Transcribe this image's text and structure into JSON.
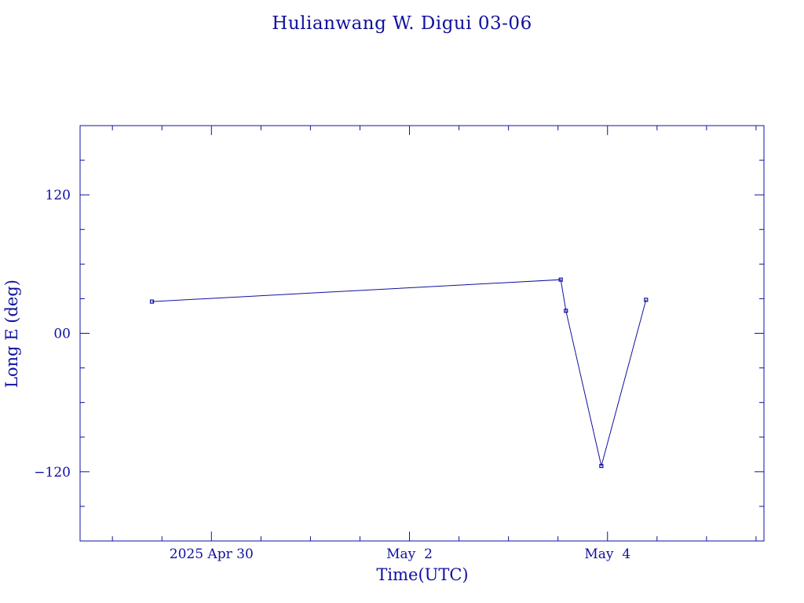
{
  "chart_data": {
    "type": "line",
    "title": "Hulianwang W. Digui 03-06",
    "xlabel": "Time(UTC)",
    "ylabel": "Long E (deg)",
    "x_ticks": [
      {
        "x": "2025-04-30T00:00",
        "label": "2025 Apr 30"
      },
      {
        "x": "2025-05-02T00:00",
        "label": "May  2"
      },
      {
        "x": "2025-05-04T00:00",
        "label": "May  4"
      }
    ],
    "y_ticks": [
      {
        "y": 120,
        "label": "120"
      },
      {
        "y": 0,
        "label": "00"
      },
      {
        "y": -120,
        "label": "−120"
      }
    ],
    "xlim": [
      "2025-04-28T16:10",
      "2025-05-05T13:55"
    ],
    "ylim": [
      -180,
      180
    ],
    "grid": false,
    "color": "#1010a0",
    "series": [
      {
        "name": "",
        "points": [
          {
            "x": "2025-04-29T09:35",
            "y": 27.5
          },
          {
            "x": "2025-05-03T12:40",
            "y": 46.5
          },
          {
            "x": "2025-05-03T13:55",
            "y": 19.5
          },
          {
            "x": "2025-05-03T22:30",
            "y": -115
          },
          {
            "x": "2025-05-04T09:20",
            "y": 29
          }
        ]
      }
    ]
  }
}
